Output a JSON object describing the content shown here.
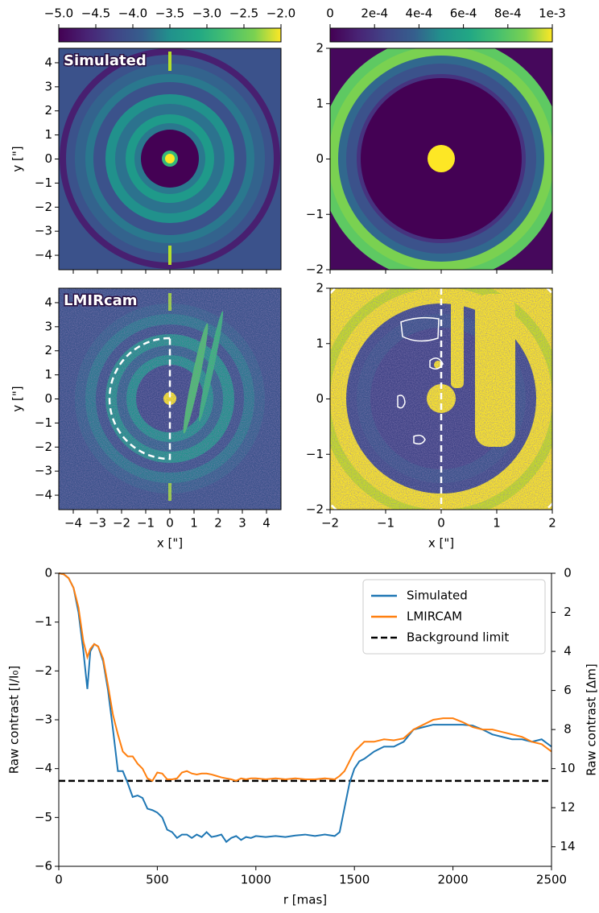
{
  "chart_data": [
    {
      "type": "colorbar",
      "colormap": "viridis",
      "xlim": [
        -5,
        -2
      ],
      "xticks": [
        {
          "value": -5,
          "label": "−5.0"
        },
        {
          "value": -4.5,
          "label": "−4.5"
        },
        {
          "value": -4,
          "label": "−4.0"
        },
        {
          "value": -3.5,
          "label": "−3.5"
        },
        {
          "value": -3,
          "label": "−3.0"
        },
        {
          "value": -2.5,
          "label": "−2.5"
        },
        {
          "value": -2,
          "label": "−2.0"
        }
      ]
    },
    {
      "type": "colorbar",
      "colormap": "viridis",
      "xlim": [
        0,
        0.001
      ],
      "xticks": [
        0,
        {
          "value": 0.0002,
          "label": "2e-4"
        },
        {
          "value": 0.0004,
          "label": "4e-4"
        },
        {
          "value": 0.0006,
          "label": "6e-4"
        },
        {
          "value": 0.0008,
          "label": "8e-4"
        },
        {
          "value": 0.001,
          "label": "1e-3"
        }
      ]
    },
    {
      "type": "image",
      "label": "Simulated",
      "ylabel": "y [\"]",
      "xlim": [
        -4.6,
        4.6
      ],
      "ylim": [
        -4.6,
        4.6
      ],
      "xtick_labels": false,
      "xticks": [
        -4,
        -3,
        -2,
        -1,
        0,
        1,
        2,
        3,
        4
      ],
      "yticks": [
        {
          "value": -4,
          "label": "−4"
        },
        {
          "value": -3,
          "label": "−3"
        },
        {
          "value": -2,
          "label": "−2"
        },
        {
          "value": -1,
          "label": "−1"
        },
        0,
        1,
        2,
        3,
        4
      ]
    },
    {
      "type": "image",
      "xlim": [
        -2,
        2
      ],
      "ylim": [
        -2,
        2
      ],
      "xtick_labels": false,
      "xticks": [
        -2,
        -1,
        0,
        1,
        2
      ],
      "yticks": [
        {
          "value": -2,
          "label": "−2"
        },
        {
          "value": -1,
          "label": "−1"
        },
        0,
        1,
        2
      ]
    },
    {
      "type": "image",
      "label": "LMIRcam",
      "ylabel": "y [\"]",
      "xlabel": "x [\"]",
      "xlim": [
        -4.6,
        4.6
      ],
      "ylim": [
        -4.6,
        4.6
      ],
      "xticks": [
        {
          "value": -4,
          "label": "−4"
        },
        {
          "value": -3,
          "label": "−3"
        },
        {
          "value": -2,
          "label": "−2"
        },
        {
          "value": -1,
          "label": "−1"
        },
        0,
        1,
        2,
        3,
        4
      ],
      "yticks": [
        {
          "value": -4,
          "label": "−4"
        },
        {
          "value": -3,
          "label": "−3"
        },
        {
          "value": -2,
          "label": "−2"
        },
        {
          "value": -1,
          "label": "−1"
        },
        0,
        1,
        2,
        3,
        4
      ]
    },
    {
      "type": "image",
      "xlabel": "x [\"]",
      "xlim": [
        -2,
        2
      ],
      "ylim": [
        -2,
        2
      ],
      "xticks": [
        {
          "value": -2,
          "label": "−2"
        },
        {
          "value": -1,
          "label": "−1"
        },
        0,
        1,
        2
      ],
      "yticks": [
        {
          "value": -2,
          "label": "−2"
        },
        {
          "value": -1,
          "label": "−1"
        },
        0,
        1,
        2
      ]
    },
    {
      "type": "line",
      "xlabel": "r [mas]",
      "ylabel": "Raw contrast [I/I₀]",
      "y2label": "Raw contrast [Δm]",
      "legend": "upper right",
      "x": [
        0,
        25,
        50,
        75,
        100,
        125,
        145,
        160,
        180,
        200,
        225,
        250,
        275,
        300,
        325,
        350,
        375,
        400,
        425,
        450,
        475,
        500,
        525,
        550,
        575,
        600,
        625,
        650,
        675,
        700,
        725,
        750,
        775,
        800,
        825,
        850,
        875,
        900,
        925,
        950,
        975,
        1000,
        1050,
        1100,
        1150,
        1200,
        1250,
        1300,
        1350,
        1400,
        1425,
        1450,
        1475,
        1500,
        1525,
        1550,
        1600,
        1650,
        1700,
        1750,
        1800,
        1850,
        1900,
        1950,
        2000,
        2050,
        2100,
        2150,
        2200,
        2250,
        2300,
        2350,
        2400,
        2450,
        2500
      ],
      "series": [
        {
          "name": "Simulated",
          "color": "#1f77b4",
          "values": [
            0,
            -0.02,
            -0.1,
            -0.3,
            -0.8,
            -1.6,
            -2.37,
            -1.6,
            -1.45,
            -1.5,
            -1.8,
            -2.4,
            -3.2,
            -4.05,
            -4.05,
            -4.3,
            -4.58,
            -4.55,
            -4.6,
            -4.82,
            -4.85,
            -4.9,
            -5.0,
            -5.25,
            -5.3,
            -5.42,
            -5.35,
            -5.35,
            -5.42,
            -5.35,
            -5.4,
            -5.3,
            -5.4,
            -5.38,
            -5.35,
            -5.5,
            -5.42,
            -5.38,
            -5.46,
            -5.4,
            -5.42,
            -5.38,
            -5.4,
            -5.38,
            -5.4,
            -5.37,
            -5.35,
            -5.38,
            -5.35,
            -5.38,
            -5.3,
            -4.8,
            -4.3,
            -4.0,
            -3.85,
            -3.8,
            -3.65,
            -3.55,
            -3.55,
            -3.45,
            -3.2,
            -3.15,
            -3.1,
            -3.1,
            -3.1,
            -3.1,
            -3.12,
            -3.2,
            -3.3,
            -3.35,
            -3.4,
            -3.4,
            -3.45,
            -3.4,
            -3.55
          ]
        },
        {
          "name": "LMIRCAM",
          "color": "#ff7f0e",
          "values": [
            0,
            -0.02,
            -0.1,
            -0.3,
            -0.7,
            -1.4,
            -1.72,
            -1.55,
            -1.45,
            -1.5,
            -1.75,
            -2.3,
            -2.9,
            -3.3,
            -3.65,
            -3.75,
            -3.75,
            -3.9,
            -4.0,
            -4.2,
            -4.25,
            -4.08,
            -4.1,
            -4.22,
            -4.22,
            -4.2,
            -4.08,
            -4.05,
            -4.1,
            -4.12,
            -4.1,
            -4.1,
            -4.12,
            -4.15,
            -4.18,
            -4.2,
            -4.22,
            -4.25,
            -4.2,
            -4.22,
            -4.2,
            -4.2,
            -4.22,
            -4.2,
            -4.22,
            -4.2,
            -4.22,
            -4.22,
            -4.2,
            -4.22,
            -4.15,
            -4.05,
            -3.85,
            -3.65,
            -3.55,
            -3.45,
            -3.45,
            -3.4,
            -3.42,
            -3.38,
            -3.2,
            -3.1,
            -3.0,
            -2.97,
            -2.97,
            -3.05,
            -3.15,
            -3.2,
            -3.2,
            -3.25,
            -3.3,
            -3.35,
            -3.45,
            -3.5,
            -3.65
          ]
        }
      ],
      "hlines": [
        {
          "name": "Background limit",
          "value": -4.25,
          "color": "#000000",
          "dash": true
        }
      ],
      "xlim": [
        0,
        2500
      ],
      "xticks": [
        0,
        500,
        1000,
        1500,
        2000,
        2500
      ],
      "ylim": [
        -6,
        0
      ],
      "yticks": [
        {
          "value": -6,
          "label": "−6"
        },
        {
          "value": -5,
          "label": "−5"
        },
        {
          "value": -4,
          "label": "−4"
        },
        {
          "value": -3,
          "label": "−3"
        },
        {
          "value": -2,
          "label": "−2"
        },
        {
          "value": -1,
          "label": "−1"
        },
        0
      ],
      "y2lim": [
        15,
        0
      ],
      "y2ticks": [
        0,
        2,
        4,
        6,
        8,
        10,
        12,
        14
      ]
    }
  ]
}
